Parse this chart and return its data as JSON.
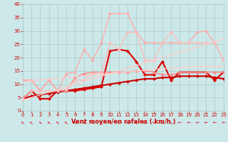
{
  "xlabel": "Vent moyen/en rafales ( km/h )",
  "x": [
    0,
    1,
    2,
    3,
    4,
    5,
    6,
    7,
    8,
    9,
    10,
    11,
    12,
    13,
    14,
    15,
    16,
    17,
    18,
    19,
    20,
    21,
    22,
    23
  ],
  "series": [
    {
      "color": "#dd0000",
      "linewidth": 1.5,
      "marker": "D",
      "markersize": 2.0,
      "values": [
        4.5,
        7.5,
        4.5,
        4.5,
        7.5,
        7.5,
        7.5,
        8.0,
        8.5,
        9.0,
        22.5,
        23.0,
        22.5,
        18.5,
        13.5,
        13.5,
        18.5,
        11.5,
        14.5,
        14.5,
        14.5,
        14.5,
        11.5,
        14.5
      ]
    },
    {
      "color": "#cc0000",
      "linewidth": 1.5,
      "marker": "D",
      "markersize": 2.0,
      "values": [
        4.5,
        5.5,
        6.0,
        6.5,
        7.0,
        7.5,
        8.0,
        8.5,
        9.0,
        9.5,
        10.0,
        10.5,
        11.0,
        11.5,
        12.0,
        12.0,
        12.5,
        12.5,
        13.0,
        13.0,
        13.0,
        13.0,
        12.5,
        12.0
      ]
    },
    {
      "color": "#ff8888",
      "linewidth": 1.0,
      "marker": "D",
      "markersize": 2.0,
      "values": [
        11.5,
        11.5,
        7.5,
        11.5,
        7.5,
        7.5,
        12.5,
        14.0,
        14.5,
        14.5,
        14.5,
        14.5,
        14.5,
        15.0,
        15.0,
        14.5,
        13.5,
        13.5,
        14.5,
        14.5,
        14.5,
        14.5,
        14.5,
        14.5
      ]
    },
    {
      "color": "#ffaaaa",
      "linewidth": 1.0,
      "marker": "D",
      "markersize": 2.0,
      "values": [
        11.5,
        11.5,
        7.5,
        11.5,
        7.5,
        14.0,
        14.5,
        23.0,
        19.0,
        25.5,
        36.5,
        36.5,
        36.5,
        29.5,
        25.5,
        25.5,
        25.5,
        25.5,
        25.5,
        25.5,
        29.5,
        30.0,
        25.5,
        19.0
      ]
    },
    {
      "color": "#ffbbbb",
      "linewidth": 1.0,
      "marker": "D",
      "markersize": 2.0,
      "values": [
        4.5,
        7.5,
        7.5,
        7.5,
        7.5,
        8.0,
        11.5,
        11.5,
        14.0,
        14.5,
        25.5,
        23.0,
        29.5,
        29.5,
        19.0,
        19.0,
        25.5,
        29.5,
        25.5,
        25.5,
        25.5,
        25.5,
        25.5,
        19.0
      ]
    },
    {
      "color": "#ffcccc",
      "linewidth": 1.0,
      "marker": null,
      "markersize": 0,
      "values": [
        4.0,
        5.0,
        6.0,
        7.0,
        8.0,
        9.0,
        10.0,
        11.0,
        12.0,
        13.0,
        14.0,
        15.0,
        16.0,
        17.0,
        18.0,
        19.0,
        20.0,
        21.0,
        22.0,
        23.0,
        24.0,
        25.0,
        26.0,
        27.0
      ]
    },
    {
      "color": "#ffcccc",
      "linewidth": 1.0,
      "marker": null,
      "markersize": 0,
      "values": [
        11.0,
        11.3,
        11.6,
        11.9,
        12.2,
        12.5,
        12.8,
        13.1,
        13.4,
        13.7,
        14.0,
        14.3,
        14.6,
        14.9,
        15.2,
        15.5,
        15.8,
        16.0,
        16.2,
        16.4,
        16.5,
        16.6,
        16.7,
        16.8
      ]
    }
  ],
  "ylim": [
    0,
    40
  ],
  "xlim": [
    0,
    23
  ],
  "yticks": [
    0,
    5,
    10,
    15,
    20,
    25,
    30,
    35,
    40
  ],
  "xticks": [
    0,
    1,
    2,
    3,
    4,
    5,
    6,
    7,
    8,
    9,
    10,
    11,
    12,
    13,
    14,
    15,
    16,
    17,
    18,
    19,
    20,
    21,
    22,
    23
  ],
  "bg_color": "#cce8e8",
  "grid_color": "#aacccc",
  "tick_label_color": "#cc0000",
  "xlabel_color": "#cc0000",
  "wind_arrow_color": "#dd0000",
  "xlabel_fontsize": 6.0,
  "tick_fontsize": 5.0
}
